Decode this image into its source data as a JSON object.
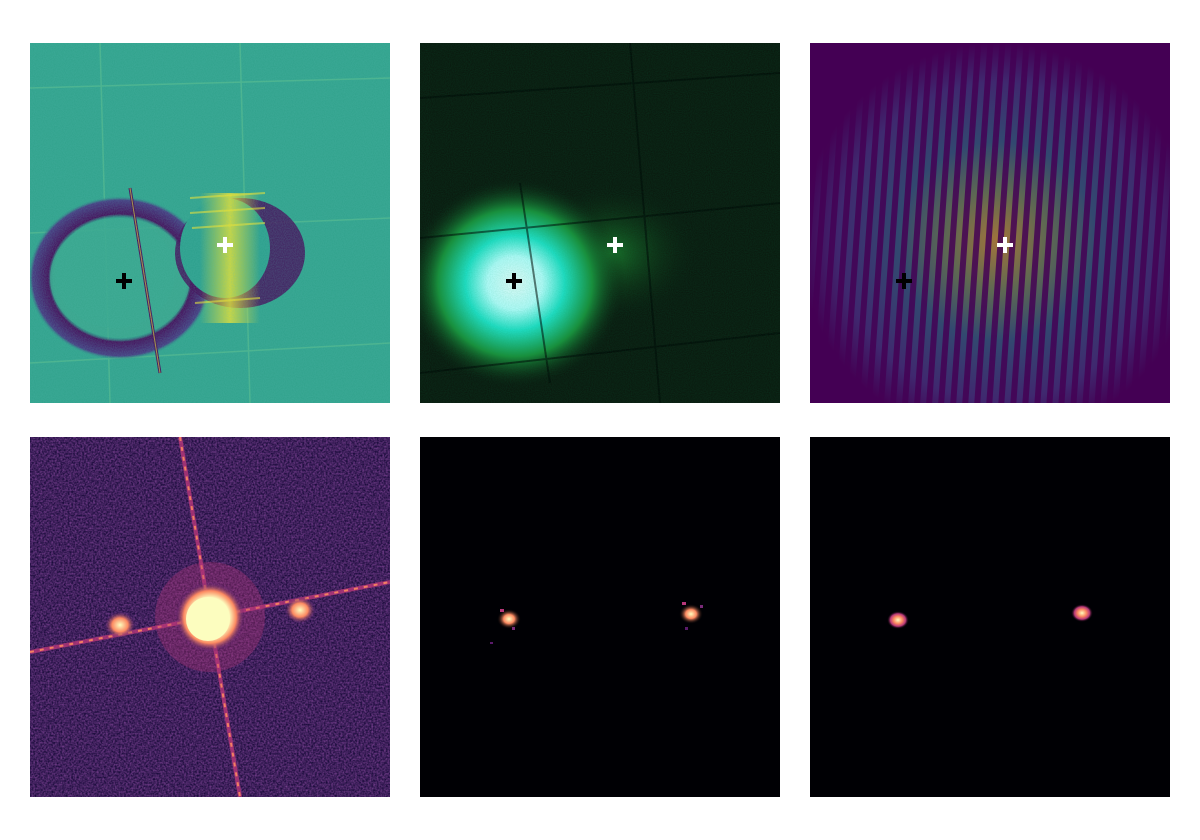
{
  "colors": {
    "background": "#ffffff",
    "viridis_dark": "#440154",
    "viridis_mid": "#21918c",
    "viridis_teal": "#2a9e8a",
    "viridis_yellow": "#fde725",
    "green_glow": "#2ee66b",
    "cyan_core": "#b8ffff",
    "magma_black": "#000004",
    "magma_purple": "#3b0f70",
    "magma_pink": "#fc8961",
    "magma_light": "#fcfdbf",
    "marker_black": "#000000",
    "marker_white": "#ffffff"
  },
  "panels": [
    {
      "name": "phase-map",
      "colormap": "viridis"
    },
    {
      "name": "intensity-image",
      "colormap": "green-cyan"
    },
    {
      "name": "fringe-pattern",
      "colormap": "viridis"
    },
    {
      "name": "fourier-spectrum",
      "colormap": "magma"
    },
    {
      "name": "measured-sidebands",
      "colormap": "magma"
    },
    {
      "name": "fitted-sidebands",
      "colormap": "magma"
    }
  ],
  "markers": [
    {
      "name": "center-marker-a",
      "color": "black"
    },
    {
      "name": "center-marker-b",
      "color": "white"
    }
  ]
}
